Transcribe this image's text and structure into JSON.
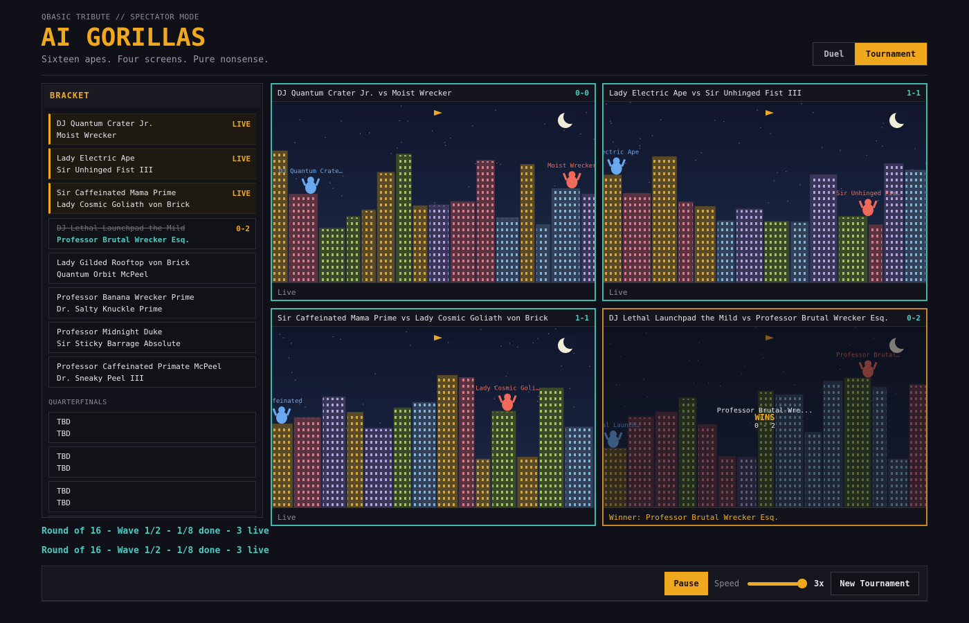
{
  "header": {
    "eyebrow": "QBASIC TRIBUTE // SPECTATOR MODE",
    "title": "AI GORILLAS",
    "subtitle": "Sixteen apes. Four screens. Pure nonsense."
  },
  "mode_toggle": {
    "options": [
      "Duel",
      "Tournament"
    ],
    "active": "Tournament"
  },
  "bracket": {
    "title": "BRACKET",
    "round_of_16": [
      {
        "top": "DJ Quantum Crater Jr.",
        "bottom": "Moist Wrecker",
        "status": "LIVE"
      },
      {
        "top": "Lady Electric Ape",
        "bottom": "Sir Unhinged Fist III",
        "status": "LIVE"
      },
      {
        "top": "Sir Caffeinated Mama Prime",
        "bottom": "Lady Cosmic Goliath von Brick",
        "status": "LIVE"
      },
      {
        "top": "DJ Lethal Launchpad the Mild",
        "bottom": "Professor Brutal Wrecker Esq.",
        "status": "0-2",
        "winner": "bottom"
      },
      {
        "top": "Lady Gilded Rooftop von Brick",
        "bottom": "Quantum Orbit McPeel"
      },
      {
        "top": "Professor Banana Wrecker Prime",
        "bottom": "Dr. Salty Knuckle Prime"
      },
      {
        "top": "Professor Midnight Duke",
        "bottom": "Sir Sticky Barrage Absolute"
      },
      {
        "top": "Professor Caffeinated Primate McPeel",
        "bottom": "Dr. Sneaky Peel III"
      }
    ],
    "quarterfinals_label": "QUARTERFINALS",
    "quarterfinals": [
      {
        "top": "TBD",
        "bottom": "TBD"
      },
      {
        "top": "TBD",
        "bottom": "TBD"
      },
      {
        "top": "TBD",
        "bottom": "TBD"
      }
    ]
  },
  "games": [
    {
      "title": "DJ Quantum Crater Jr. vs Moist Wrecker",
      "score": "0-0",
      "footer": "Live",
      "left_label": "DJ Quantum Crate…",
      "right_label": "Moist Wrecker"
    },
    {
      "title": "Lady Electric Ape vs Sir Unhinged Fist III",
      "score": "1-1",
      "footer": "Live",
      "left_label": "Electric Ape",
      "right_label": "Sir Unhinged Fis…"
    },
    {
      "title": "Sir Caffeinated Mama Prime vs Lady Cosmic Goliath von Brick",
      "score": "1-1",
      "footer": "Live",
      "left_label": "Caffeinated",
      "right_label": "Lady Cosmic Goli…"
    },
    {
      "title": "DJ Lethal Launchpad the Mild vs Professor Brutal Wrecker Esq.",
      "score": "0-2",
      "footer": "Winner: Professor Brutal Wrecker Esq.",
      "left_label": "Lethal Launch…",
      "right_label": "Professor Brutal…",
      "state": "finished",
      "overlay": {
        "name": "Professor Brutal Wre...",
        "verdict": "WINS",
        "score": "0 - 2"
      }
    }
  ],
  "status_lines": [
    "Round of 16 - Wave 1/2 - 1/8 done - 3 live",
    "Round of 16 - Wave 1/2 - 1/8 done - 3 live"
  ],
  "controls": {
    "pause": "Pause",
    "speed_label": "Speed",
    "speed_value": "3x",
    "new_tournament": "New Tournament"
  }
}
